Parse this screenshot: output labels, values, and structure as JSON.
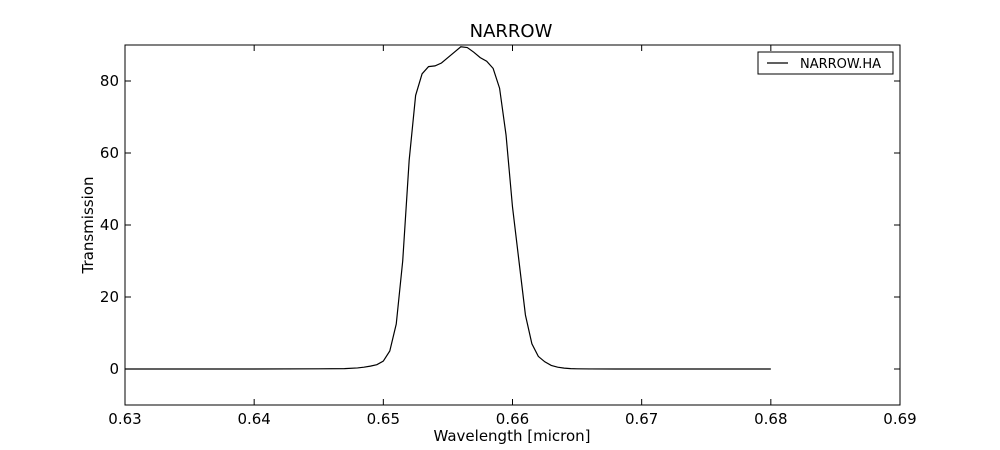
{
  "chart_data": {
    "type": "line",
    "title": "NARROW",
    "xlabel": "Wavelength [micron]",
    "ylabel": "Transmission",
    "xlim": [
      0.63,
      0.69
    ],
    "ylim": [
      -10,
      90
    ],
    "xticks": [
      0.63,
      0.64,
      0.65,
      0.66,
      0.67,
      0.68,
      0.69
    ],
    "xtick_labels": [
      "0.63",
      "0.64",
      "0.65",
      "0.66",
      "0.67",
      "0.68",
      "0.69"
    ],
    "yticks": [
      0,
      20,
      40,
      60,
      80
    ],
    "ytick_labels": [
      "0",
      "20",
      "40",
      "60",
      "80"
    ],
    "grid": false,
    "legend_position": "top-right",
    "series": [
      {
        "name": "NARROW.HA",
        "color": "#000000",
        "x": [
          0.63,
          0.64,
          0.645,
          0.647,
          0.648,
          0.6485,
          0.649,
          0.6495,
          0.65,
          0.6505,
          0.651,
          0.6515,
          0.652,
          0.6525,
          0.653,
          0.6535,
          0.654,
          0.6545,
          0.655,
          0.6555,
          0.656,
          0.6565,
          0.657,
          0.6575,
          0.658,
          0.6585,
          0.659,
          0.6595,
          0.66,
          0.6605,
          0.661,
          0.6615,
          0.662,
          0.6625,
          0.663,
          0.6635,
          0.664,
          0.6645,
          0.665,
          0.666,
          0.668,
          0.67,
          0.68
        ],
        "values": [
          0,
          0,
          0.05,
          0.1,
          0.3,
          0.5,
          0.8,
          1.2,
          2.2,
          5.0,
          12.5,
          30,
          58,
          76,
          82,
          84,
          84.2,
          85,
          86.5,
          88,
          89.5,
          89.3,
          88,
          86.5,
          85.5,
          83.5,
          78,
          65,
          45,
          30,
          15,
          7,
          3.5,
          2,
          1,
          0.5,
          0.25,
          0.1,
          0.05,
          0.02,
          0,
          0,
          0
        ]
      }
    ]
  }
}
